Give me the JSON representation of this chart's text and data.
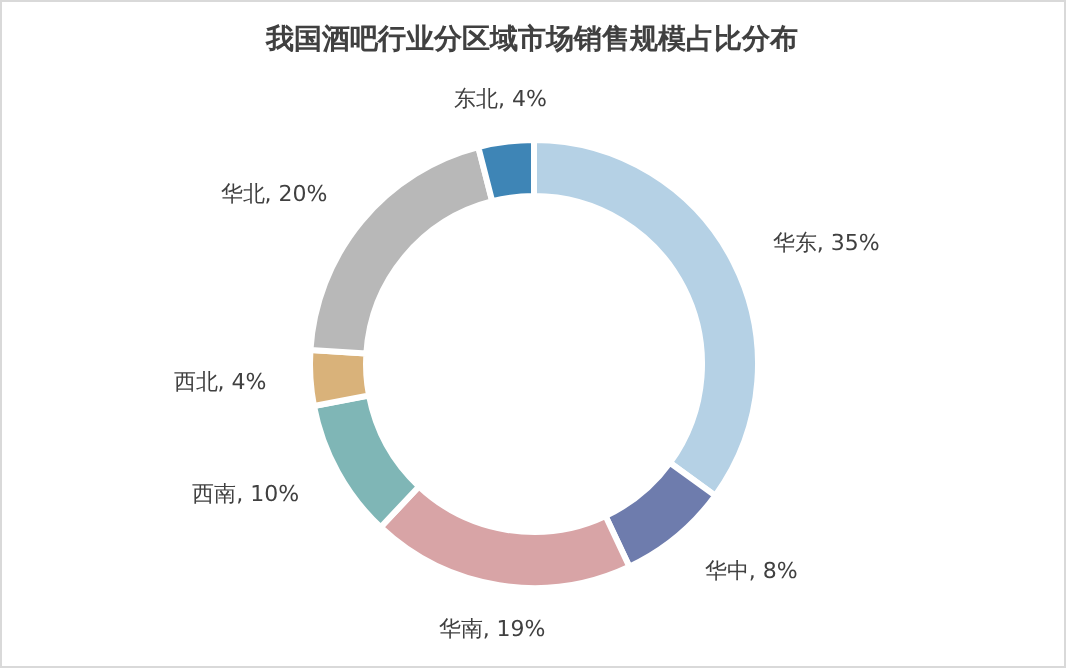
{
  "chart_data": {
    "type": "donut",
    "title": "我国酒吧行业分区域市场销售规模占比分布",
    "categories": [
      "华东",
      "华中",
      "华南",
      "西南",
      "西北",
      "华北",
      "东北"
    ],
    "values": [
      35,
      8,
      19,
      10,
      4,
      20,
      4
    ],
    "colors": [
      "#b5d1e5",
      "#6e7cad",
      "#d8a4a6",
      "#7fb6b6",
      "#d9b27a",
      "#b8b8b8",
      "#3e85b6"
    ],
    "value_labels": [
      ", 35%",
      ", 8%",
      ", 19%",
      ", 10%",
      ", 4%",
      ", 20%",
      ", 4%"
    ]
  }
}
